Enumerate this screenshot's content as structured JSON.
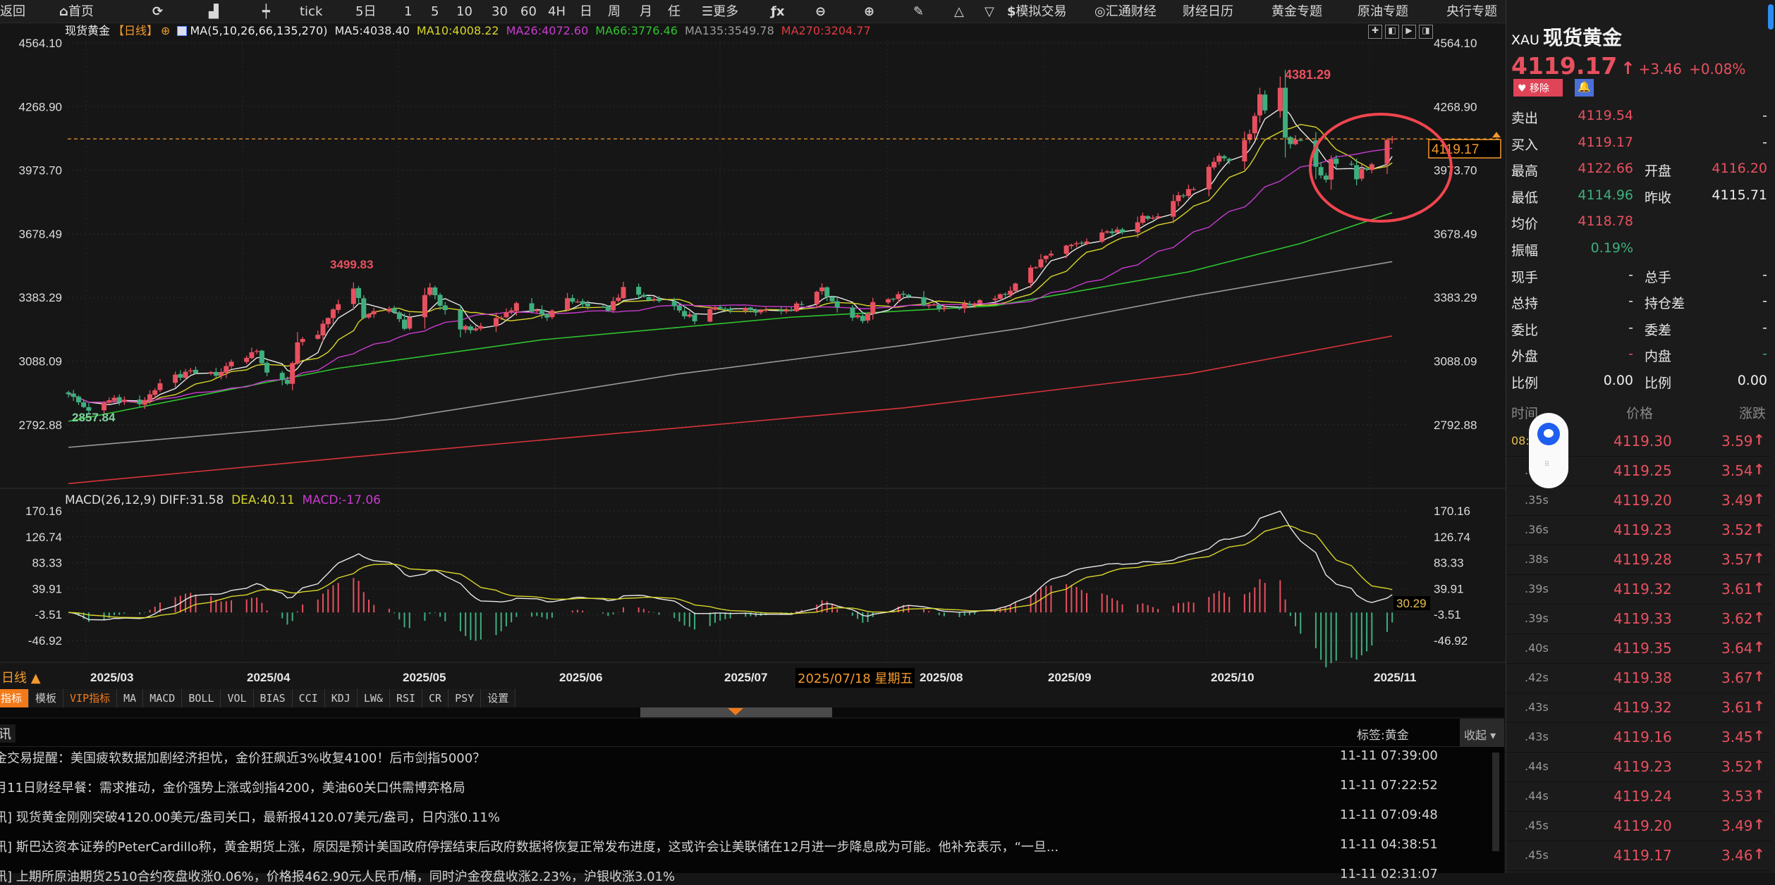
{
  "toolbar": {
    "items": [
      {
        "label": "返回",
        "icon": ""
      },
      {
        "label": "首页",
        "icon": "home-icon"
      },
      {
        "label": "",
        "icon": "refresh-icon"
      },
      {
        "label": "",
        "icon": "bar-chart-icon"
      },
      {
        "label": "",
        "icon": "candlestick-icon"
      },
      {
        "label": "tick",
        "icon": ""
      },
      {
        "label": "5日",
        "icon": ""
      },
      {
        "label": "1",
        "icon": ""
      },
      {
        "label": "5",
        "icon": ""
      },
      {
        "label": "10",
        "icon": ""
      },
      {
        "label": "30",
        "icon": ""
      },
      {
        "label": "60",
        "icon": ""
      },
      {
        "label": "4H",
        "icon": ""
      },
      {
        "label": "日",
        "icon": ""
      },
      {
        "label": "周",
        "icon": ""
      },
      {
        "label": "月",
        "icon": ""
      },
      {
        "label": "任",
        "icon": ""
      },
      {
        "label": "更多",
        "icon": "menu-icon"
      },
      {
        "label": "",
        "icon": "fx-icon"
      },
      {
        "label": "",
        "icon": "zoom-out-icon"
      },
      {
        "label": "",
        "icon": "zoom-in-icon"
      },
      {
        "label": "",
        "icon": "pen-icon"
      },
      {
        "label": "",
        "icon": "triangle-up-icon"
      },
      {
        "label": "",
        "icon": "triangle-down-icon"
      },
      {
        "label": "模拟交易",
        "icon": "dollar-icon"
      },
      {
        "label": "汇通财经",
        "icon": "huitong-logo-icon"
      },
      {
        "label": "财经日历",
        "icon": ""
      },
      {
        "label": "黄金专题",
        "icon": ""
      },
      {
        "label": "原油专题",
        "icon": ""
      },
      {
        "label": "央行专题",
        "icon": ""
      }
    ]
  },
  "chart_header": {
    "symbol": "现货黄金",
    "period": "【日线】",
    "ma_params": "MA(5,10,26,66,135,270)",
    "ma5": "MA5:4038.40",
    "ma10": "MA10:4008.22",
    "ma26": "MA26:4072.60",
    "ma66": "MA66:3776.46",
    "ma135": "MA135:3549.78",
    "ma270": "MA270:3204.77"
  },
  "colors": {
    "up": "#e8505f",
    "down": "#3fae7e",
    "ma5": "#e8e8e8",
    "ma10": "#d8d62a",
    "ma26": "#c93bd0",
    "ma66": "#2fc42f",
    "ma135": "#9a9a9a",
    "ma270": "#d8343a",
    "accent": "#f39a2b",
    "annotation": "#f0454f"
  },
  "chart_data": [
    {
      "type": "candlestick",
      "price_ticks": [
        "4564.10",
        "4268.90",
        "3973.70",
        "3678.49",
        "3383.29",
        "3088.09",
        "2792.88"
      ],
      "x_ticks": [
        "2025/03",
        "2025/04",
        "2025/05",
        "2025/06",
        "2025/07",
        "2025/08",
        "2025/09",
        "2025/10",
        "2025/11"
      ],
      "high_label": "4381.29",
      "mid_high_label": "3499.83",
      "low_label": "2857.84",
      "current_price_label": "4119.17",
      "crosshair_date": "2025/07/18",
      "crosshair_weekday": "星期五",
      "daily_close_points": [
        [
          "2025-02-24",
          2935
        ],
        [
          "2025-02-27",
          2875
        ],
        [
          "2025-02-28",
          2858
        ],
        [
          "2025-03-05",
          2918
        ],
        [
          "2025-03-10",
          2888
        ],
        [
          "2025-03-14",
          2985
        ],
        [
          "2025-03-20",
          3045
        ],
        [
          "2025-03-25",
          3020
        ],
        [
          "2025-03-28",
          3085
        ],
        [
          "2025-04-02",
          3135
        ],
        [
          "2025-04-04",
          3035
        ],
        [
          "2025-04-08",
          2983
        ],
        [
          "2025-04-10",
          3175
        ],
        [
          "2025-04-14",
          3210
        ],
        [
          "2025-04-17",
          3328
        ],
        [
          "2025-04-21",
          3425
        ],
        [
          "2025-04-22",
          3381
        ],
        [
          "2025-04-23",
          3288
        ],
        [
          "2025-04-25",
          3320
        ],
        [
          "2025-04-29",
          3316
        ],
        [
          "2025-05-01",
          3238
        ],
        [
          "2025-05-06",
          3430
        ],
        [
          "2025-05-09",
          3325
        ],
        [
          "2025-05-12",
          3235
        ],
        [
          "2025-05-15",
          3240
        ],
        [
          "2025-05-20",
          3290
        ],
        [
          "2025-05-23",
          3357
        ],
        [
          "2025-05-29",
          3290
        ],
        [
          "2025-06-02",
          3380
        ],
        [
          "2025-06-05",
          3352
        ],
        [
          "2025-06-10",
          3322
        ],
        [
          "2025-06-13",
          3432
        ],
        [
          "2025-06-18",
          3370
        ],
        [
          "2025-06-24",
          3323
        ],
        [
          "2025-06-27",
          3273
        ],
        [
          "2025-07-01",
          3338
        ],
        [
          "2025-07-07",
          3335
        ],
        [
          "2025-07-10",
          3324
        ],
        [
          "2025-07-15",
          3325
        ],
        [
          "2025-07-18",
          3350
        ],
        [
          "2025-07-22",
          3430
        ],
        [
          "2025-07-25",
          3337
        ],
        [
          "2025-07-30",
          3274
        ],
        [
          "2025-08-01",
          3362
        ],
        [
          "2025-08-07",
          3396
        ],
        [
          "2025-08-12",
          3348
        ],
        [
          "2025-08-15",
          3336
        ],
        [
          "2025-08-20",
          3347
        ],
        [
          "2025-08-22",
          3371
        ],
        [
          "2025-08-27",
          3396
        ],
        [
          "2025-08-29",
          3448
        ],
        [
          "2025-09-03",
          3560
        ],
        [
          "2025-09-05",
          3586
        ],
        [
          "2025-09-09",
          3628
        ],
        [
          "2025-09-12",
          3643
        ],
        [
          "2025-09-16",
          3690
        ],
        [
          "2025-09-19",
          3685
        ],
        [
          "2025-09-23",
          3763
        ],
        [
          "2025-09-26",
          3760
        ],
        [
          "2025-09-30",
          3858
        ],
        [
          "2025-10-03",
          3886
        ],
        [
          "2025-10-08",
          4041
        ],
        [
          "2025-10-10",
          4017
        ],
        [
          "2025-10-14",
          4142
        ],
        [
          "2025-10-16",
          4326
        ],
        [
          "2025-10-17",
          4251
        ],
        [
          "2025-10-20",
          4356
        ],
        [
          "2025-10-21",
          4125
        ],
        [
          "2025-10-22",
          4095
        ],
        [
          "2025-10-24",
          4112
        ],
        [
          "2025-10-27",
          3990
        ],
        [
          "2025-10-28",
          3950
        ],
        [
          "2025-10-29",
          3930
        ],
        [
          "2025-10-30",
          4025
        ],
        [
          "2025-10-31",
          4003
        ],
        [
          "2025-11-03",
          4000
        ],
        [
          "2025-11-04",
          3932
        ],
        [
          "2025-11-05",
          3980
        ],
        [
          "2025-11-06",
          3977
        ],
        [
          "2025-11-07",
          4001
        ],
        [
          "2025-11-10",
          4115
        ],
        [
          "2025-11-11",
          4119.17
        ]
      ],
      "long_ma": [
        {
          "name": "MA66",
          "points": [
            [
              "2025-02-24",
              2809
            ],
            [
              "2025-04-18",
              3055
            ],
            [
              "2025-05-28",
              3187
            ],
            [
              "2025-07-16",
              3292
            ],
            [
              "2025-08-25",
              3345
            ],
            [
              "2025-10-02",
              3502
            ],
            [
              "2025-10-24",
              3634
            ],
            [
              "2025-11-11",
              3776.46
            ]
          ]
        },
        {
          "name": "MA135",
          "points": [
            [
              "2025-02-24",
              2688
            ],
            [
              "2025-04-29",
              2819
            ],
            [
              "2025-06-24",
              3029
            ],
            [
              "2025-08-07",
              3161
            ],
            [
              "2025-08-30",
              3240
            ],
            [
              "2025-10-02",
              3387
            ],
            [
              "2025-11-11",
              3549.78
            ]
          ]
        },
        {
          "name": "MA270",
          "points": [
            [
              "2025-02-24",
              2520
            ],
            [
              "2025-04-29",
              2661
            ],
            [
              "2025-08-07",
              2871
            ],
            [
              "2025-10-02",
              3029
            ],
            [
              "2025-11-11",
              3204.77
            ]
          ]
        }
      ]
    },
    {
      "type": "macd",
      "params": "MACD(26,12,9)",
      "diff": "DIFF:31.58",
      "dea": "DEA:40.11",
      "macd": "MACD:-17.06",
      "ticks": [
        "170.16",
        "126.74",
        "83.33",
        "39.91",
        "-3.51",
        "-46.92"
      ],
      "right_label": "30.29"
    }
  ],
  "bottom": {
    "period_label": "日线 ▲",
    "tabs": [
      "指标",
      "模板",
      "VIP指标",
      "MA",
      "MACD",
      "BOLL",
      "VOL",
      "BIAS",
      "CCI",
      "KDJ",
      "LW&",
      "RSI",
      "CR",
      "PSY",
      "设置"
    ]
  },
  "news": {
    "header_left": "讯",
    "tag": "标签:黄金",
    "collapse": "收起 ▾",
    "items": [
      {
        "title": "金交易提醒：美国疲软数据加剧经济担忧，金价狂飙近3%收复4100！后市剑指5000？",
        "time": "11-11 07:39:00"
      },
      {
        "title": "月11日财经早餐：需求推动，金价强势上涨或剑指4200，美油60关口供需博弈格局",
        "time": "11-11 07:22:52"
      },
      {
        "title": "讯] 现货黄金刚刚突破4120.00美元/盎司关口，最新报4120.07美元/盎司，日内涨0.11%",
        "time": "11-11 07:09:48"
      },
      {
        "title": "讯] 斯巴达资本证券的PeterCardillo称，黄金期货上涨，原因是预计美国政府停摆结束后政府数据将恢复正常发布进度，这或许会让美联储在12月进一步降息成为可能。他补充表示，“一旦...",
        "time": "11-11 04:38:51"
      },
      {
        "title": "讯] 上期所原油期货2510合约夜盘收涨0.06%，价格报462.90元人民币/桶，同时沪金夜盘收涨2.23%，沪银收涨3.01%",
        "time": "11-11 02:31:07"
      }
    ]
  },
  "quote": {
    "code": "XAU",
    "name": "现货黄金",
    "price": "4119.17",
    "arrow": "↑",
    "change": "+3.46",
    "change_pct": "+0.08%",
    "remove_label": "移除",
    "rows": [
      {
        "l1": "卖出",
        "v1": "4119.54",
        "c1": "red",
        "l2": "",
        "v2": "-",
        "c2": "white"
      },
      {
        "l1": "买入",
        "v1": "4119.17",
        "c1": "red",
        "l2": "",
        "v2": "-",
        "c2": "white"
      },
      {
        "l1": "最高",
        "v1": "4122.66",
        "c1": "red",
        "l2": "开盘",
        "v2": "4116.20",
        "c2": "red"
      },
      {
        "l1": "最低",
        "v1": "4114.96",
        "c1": "green",
        "l2": "昨收",
        "v2": "4115.71",
        "c2": "white"
      },
      {
        "l1": "均价",
        "v1": "4118.78",
        "c1": "red",
        "l2": "",
        "v2": "",
        "c2": "white"
      },
      {
        "l1": "振幅",
        "v1": "0.19%",
        "c1": "green",
        "l2": "",
        "v2": "",
        "c2": "white"
      },
      {
        "l1": "现手",
        "v1": "-",
        "c1": "white",
        "l2": "总手",
        "v2": "-",
        "c2": "white"
      },
      {
        "l1": "总持",
        "v1": "-",
        "c1": "white",
        "l2": "持仓差",
        "v2": "-",
        "c2": "white"
      },
      {
        "l1": "委比",
        "v1": "-",
        "c1": "white",
        "l2": "委差",
        "v2": "-",
        "c2": "white"
      },
      {
        "l1": "外盘",
        "v1": "-",
        "c1": "red",
        "l2": "内盘",
        "v2": "-",
        "c2": "green"
      },
      {
        "l1": "比例",
        "v1": "0.00",
        "c1": "white",
        "l2": "比例",
        "v2": "0.00",
        "c2": "white"
      }
    ]
  },
  "ticks": {
    "headers": [
      "时间",
      "价格",
      "涨跌"
    ],
    "rows": [
      {
        "t": "08:",
        "p": "4119.30",
        "c": "3.59"
      },
      {
        "t": ".3",
        "p": "4119.25",
        "c": "3.54"
      },
      {
        "t": ".35s",
        "p": "4119.20",
        "c": "3.49"
      },
      {
        "t": ".36s",
        "p": "4119.23",
        "c": "3.52"
      },
      {
        "t": ".38s",
        "p": "4119.28",
        "c": "3.57"
      },
      {
        "t": ".39s",
        "p": "4119.32",
        "c": "3.61"
      },
      {
        "t": ".39s",
        "p": "4119.33",
        "c": "3.62"
      },
      {
        "t": ".40s",
        "p": "4119.35",
        "c": "3.64"
      },
      {
        "t": ".42s",
        "p": "4119.38",
        "c": "3.67"
      },
      {
        "t": ".43s",
        "p": "4119.32",
        "c": "3.61"
      },
      {
        "t": ".43s",
        "p": "4119.16",
        "c": "3.45"
      },
      {
        "t": ".44s",
        "p": "4119.23",
        "c": "3.52"
      },
      {
        "t": ".44s",
        "p": "4119.24",
        "c": "3.53"
      },
      {
        "t": ".45s",
        "p": "4119.20",
        "c": "3.49"
      },
      {
        "t": ".45s",
        "p": "4119.17",
        "c": "3.46"
      }
    ]
  }
}
